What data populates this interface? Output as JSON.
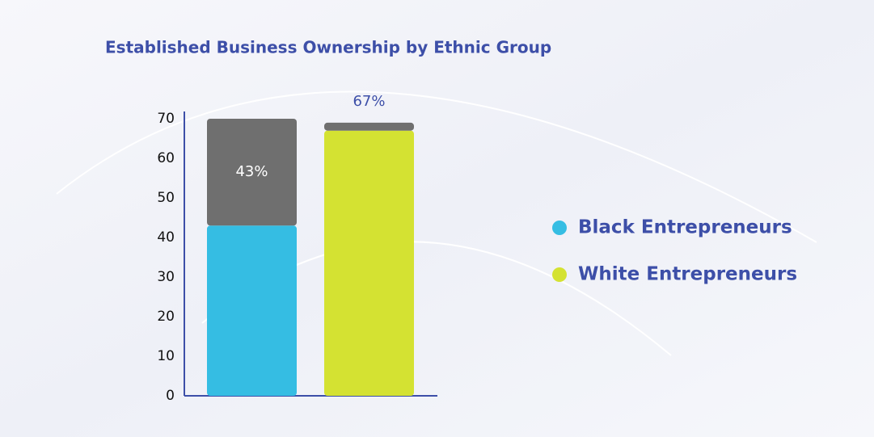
{
  "chart_data": {
    "type": "stacked-bar",
    "title": "Established Business Ownership by Ethnic Group",
    "categories": [
      null,
      null
    ],
    "series": [
      {
        "name": "Black Entrepreneurs",
        "color": "#35bde3",
        "values": [
          43,
          null
        ],
        "value_labels": [
          "43%",
          null
        ]
      },
      {
        "name": "White Entrepreneurs",
        "color": "#d4e232",
        "values": [
          null,
          67
        ],
        "value_labels": [
          null,
          "67%"
        ]
      },
      {
        "color": "#6f6f6f",
        "values": [
          27,
          2
        ]
      }
    ],
    "ylim": [
      0,
      70
    ],
    "yticks": [
      0,
      10,
      20,
      30,
      40,
      50,
      60,
      70
    ],
    "grid": false
  }
}
